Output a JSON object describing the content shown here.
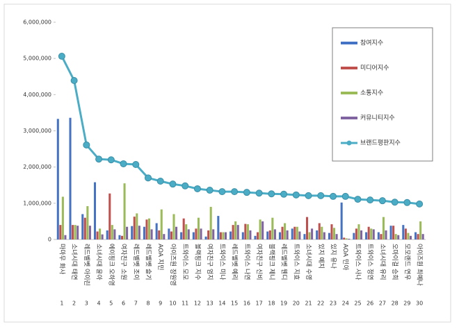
{
  "chart_data": {
    "type": "bar",
    "categories": [
      "마마무 화사",
      "소녀시대 태연",
      "레드벨벳 아이린",
      "소녀시대 윤아",
      "에이핑크 오하영",
      "여자친구 소원",
      "레드벨벳 조이",
      "레드벨벳 슬기",
      "AOA 지민",
      "아이즈원 장원영",
      "트와이스 모모",
      "블랙핑크 지수",
      "여자친구 엄지",
      "트와이스 미나",
      "레드벨벳 예리",
      "트와이스 나연",
      "여자친구 신비",
      "블랙핑크 제니",
      "레드벨벳 웬디",
      "트와이스 지효",
      "소녀시대 수영",
      "있지 예지",
      "있지 유나",
      "AOA 민아",
      "트와이스 사나",
      "트와이스 정연",
      "소녀시대 유리",
      "오마이걸 승희",
      "모모랜드 연우",
      "아이즈원 최예나"
    ],
    "category_ranks": [
      1,
      2,
      3,
      4,
      5,
      6,
      7,
      8,
      9,
      10,
      11,
      12,
      13,
      14,
      15,
      16,
      17,
      18,
      19,
      20,
      21,
      22,
      23,
      24,
      25,
      26,
      27,
      28,
      29,
      30
    ],
    "series": [
      {
        "name": "참여지수",
        "color": "#4472c4",
        "values": [
          3330000,
          3360000,
          700000,
          1580000,
          250000,
          120000,
          370000,
          350000,
          450000,
          300000,
          200000,
          200000,
          80000,
          650000,
          220000,
          200000,
          100000,
          220000,
          200000,
          300000,
          150000,
          250000,
          180000,
          1020000,
          180000,
          200000,
          200000,
          380000,
          400000,
          200000
        ]
      },
      {
        "name": "미디어지수",
        "color": "#c0504d",
        "values": [
          400000,
          400000,
          600000,
          220000,
          1270000,
          100000,
          630000,
          550000,
          250000,
          220000,
          580000,
          300000,
          250000,
          200000,
          400000,
          430000,
          200000,
          250000,
          350000,
          350000,
          620000,
          450000,
          420000,
          50000,
          300000,
          350000,
          150000,
          380000,
          300000,
          150000
        ]
      },
      {
        "name": "소통지수",
        "color": "#9bbb59",
        "values": [
          1180000,
          400000,
          920000,
          300000,
          400000,
          1550000,
          720000,
          580000,
          830000,
          700000,
          420000,
          600000,
          900000,
          200000,
          500000,
          420000,
          550000,
          600000,
          450000,
          350000,
          200000,
          350000,
          320000,
          30000,
          420000,
          300000,
          620000,
          150000,
          180000,
          500000
        ]
      },
      {
        "name": "커뮤니티지수",
        "color": "#8064a2",
        "values": [
          120000,
          380000,
          380000,
          140000,
          280000,
          350000,
          380000,
          280000,
          150000,
          350000,
          280000,
          300000,
          280000,
          200000,
          400000,
          250000,
          500000,
          280000,
          250000,
          220000,
          300000,
          200000,
          150000,
          20000,
          250000,
          280000,
          250000,
          120000,
          100000,
          150000
        ]
      },
      {
        "name": "브랜드평판지수",
        "color": "#4bacc6",
        "type": "line",
        "values": [
          5060000,
          4390000,
          2610000,
          2220000,
          2200000,
          2090000,
          2070000,
          1700000,
          1610000,
          1530000,
          1480000,
          1400000,
          1360000,
          1320000,
          1320000,
          1300000,
          1280000,
          1260000,
          1250000,
          1230000,
          1210000,
          1210000,
          1190000,
          1190000,
          1110000,
          1090000,
          1070000,
          1030000,
          1020000,
          980000
        ]
      }
    ],
    "ylim": [
      0,
      6000000
    ],
    "yticks": [
      0,
      {
        "value": 1000000,
        "label": "1,000,000"
      },
      {
        "value": 2000000,
        "label": "2,000,000"
      },
      {
        "value": 3000000,
        "label": "3,000,000"
      },
      {
        "value": 4000000,
        "label": "4,000,000"
      },
      {
        "value": 5000000,
        "label": "5,000,000"
      },
      {
        "value": 6000000,
        "label": "6,000,000"
      }
    ],
    "legend": "right"
  }
}
